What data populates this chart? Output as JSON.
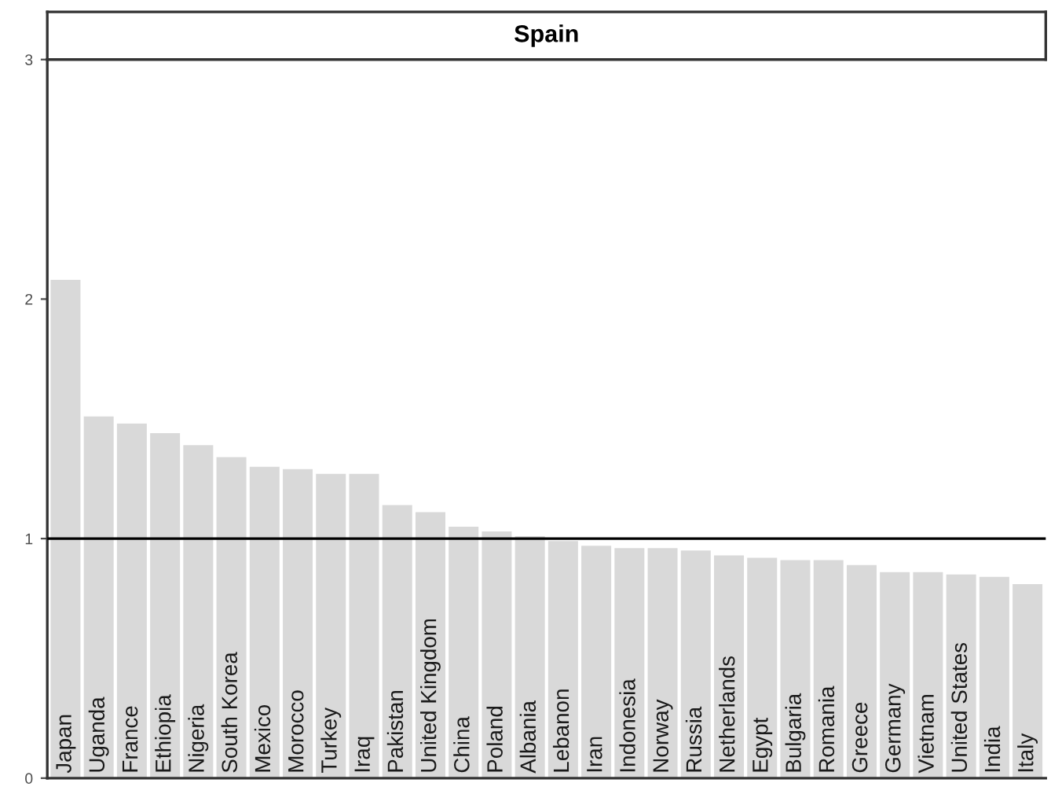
{
  "chart_data": {
    "type": "bar",
    "title": "Spain",
    "categories": [
      "Japan",
      "Uganda",
      "France",
      "Ethiopia",
      "Nigeria",
      "South Korea",
      "Mexico",
      "Morocco",
      "Turkey",
      "Iraq",
      "Pakistan",
      "United Kingdom",
      "China",
      "Poland",
      "Albania",
      "Lebanon",
      "Iran",
      "Indonesia",
      "Norway",
      "Russia",
      "Netherlands",
      "Egypt",
      "Bulgaria",
      "Romania",
      "Greece",
      "Germany",
      "Vietnam",
      "United States",
      "India",
      "Italy"
    ],
    "values": [
      2.08,
      1.51,
      1.48,
      1.44,
      1.39,
      1.34,
      1.3,
      1.29,
      1.27,
      1.27,
      1.14,
      1.11,
      1.05,
      1.03,
      1.01,
      0.99,
      0.97,
      0.96,
      0.96,
      0.95,
      0.93,
      0.92,
      0.91,
      0.91,
      0.89,
      0.86,
      0.86,
      0.85,
      0.84,
      0.81
    ],
    "color": "#d9d9d9",
    "ylim": [
      0,
      3
    ],
    "yticks": [
      0,
      1,
      2,
      3
    ],
    "grid": false,
    "ref_lines": [
      {
        "axis": "y",
        "value": 1,
        "color": "#000000"
      }
    ]
  }
}
